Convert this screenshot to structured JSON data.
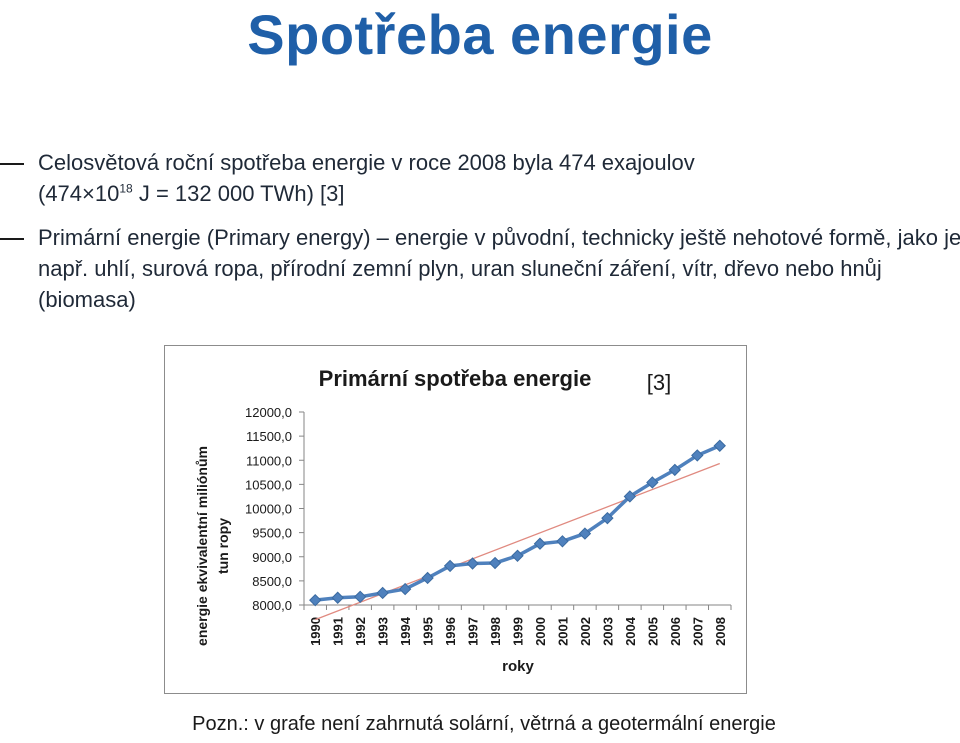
{
  "slide": {
    "title": "Spotřeba energie",
    "bullets": [
      {
        "line1": "Celosvětová roční spotřeba energie v roce 2008 byla 474 exajoulov",
        "line2_pre": "(474×10",
        "line2_sup": "18",
        "line2_post": " J = 132 000 TWh) [3]"
      },
      {
        "text": "Primární energie (Primary energy) – energie v původní, technicky ještě nehotové formě, jako je např. uhlí, surová ropa, přírodní zemní plyn, uran sluneční záření, vítr, dřevo nebo hnůj (biomasa)"
      }
    ],
    "note": "Pozn.: v grafe není zahrnutá solární, větrná a geotermální energie"
  },
  "chart_data": {
    "type": "line",
    "title": "Primární spotřeba energie",
    "annotation": "[3]",
    "xlabel": "roky",
    "ylabel_line1": "energie ekvivalentní miliónům",
    "ylabel_line2": "tun ropy",
    "categories": [
      "1990",
      "1991",
      "1992",
      "1993",
      "1994",
      "1995",
      "1996",
      "1997",
      "1998",
      "1999",
      "2000",
      "2001",
      "2002",
      "2003",
      "2004",
      "2005",
      "2006",
      "2007",
      "2008"
    ],
    "series": [
      {
        "values": [
          8100,
          8150,
          8170,
          8250,
          8330,
          8560,
          8810,
          8860,
          8870,
          9020,
          9270,
          9320,
          9480,
          9800,
          10250,
          10540,
          10800,
          11100,
          11300
        ],
        "color": "#4f81bd"
      }
    ],
    "trendline": {
      "color": "#e08a80"
    },
    "yticks": [
      "8000,0",
      "8500,0",
      "9000,0",
      "9500,0",
      "10000,0",
      "10500,0",
      "11000,0",
      "11500,0",
      "12000,0"
    ],
    "ylim": [
      8000,
      12000
    ],
    "grid": false,
    "legend": "none"
  }
}
